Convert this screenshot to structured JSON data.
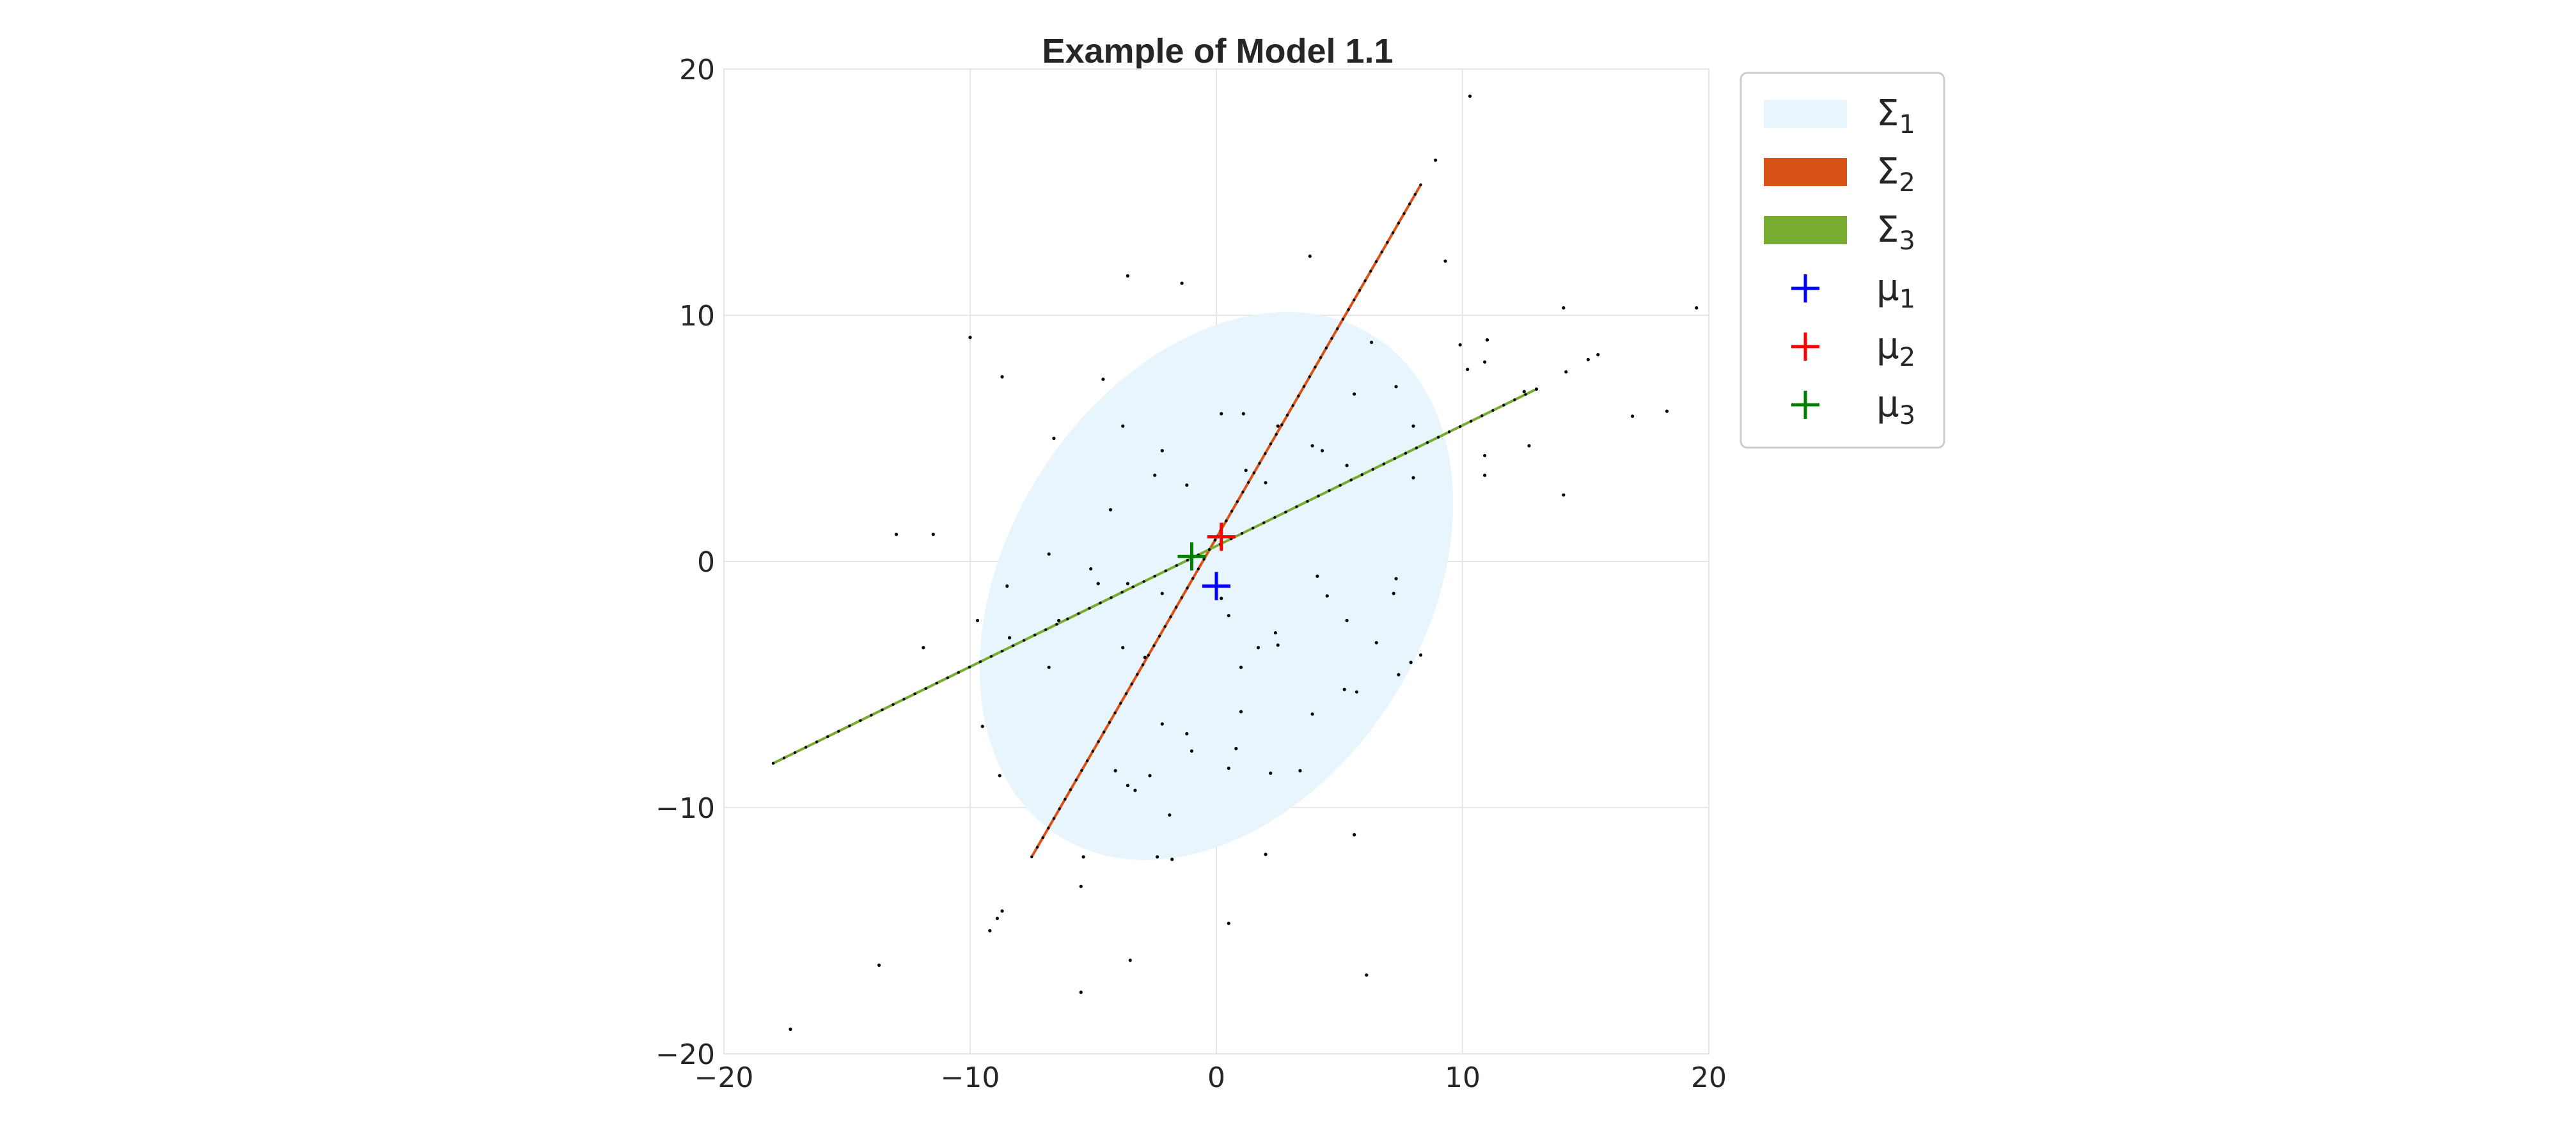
{
  "chart_data": {
    "type": "scatter",
    "title": "Example of Model 1.1",
    "xlabel": "",
    "ylabel": "",
    "xlim": [
      -20,
      20
    ],
    "ylim": [
      -20,
      20
    ],
    "x_ticks": [
      -20,
      -10,
      0,
      10,
      20
    ],
    "y_ticks": [
      -20,
      -10,
      0,
      10,
      20
    ],
    "x_tick_labels": [
      "−20",
      "−10",
      "0",
      "10",
      "20"
    ],
    "y_tick_labels": [
      "−20",
      "−10",
      "0",
      "10",
      "20"
    ],
    "grid": true,
    "legend_position": "outside-right",
    "colors": {
      "sigma1": "#e8f5fc",
      "sigma2": "#d95319",
      "sigma3": "#77ac30",
      "mu1": "#0000ff",
      "mu2": "#ff0000",
      "mu3": "#008000",
      "points": "#000000",
      "frame": "#cccccc"
    },
    "legend": [
      {
        "kind": "patch",
        "key": "sigma1",
        "symbol": "Σ",
        "sub": "1"
      },
      {
        "kind": "patch",
        "key": "sigma2",
        "symbol": "Σ",
        "sub": "2"
      },
      {
        "kind": "patch",
        "key": "sigma3",
        "symbol": "Σ",
        "sub": "3"
      },
      {
        "kind": "marker",
        "key": "mu1",
        "symbol": "μ",
        "sub": "1"
      },
      {
        "kind": "marker",
        "key": "mu2",
        "symbol": "μ",
        "sub": "2"
      },
      {
        "kind": "marker",
        "key": "mu3",
        "symbol": "μ",
        "sub": "3"
      }
    ],
    "means": [
      {
        "name": "mu1",
        "x": 0,
        "y": -1
      },
      {
        "name": "mu2",
        "x": 0.2,
        "y": 1
      },
      {
        "name": "mu3",
        "x": -1,
        "y": 0.2
      }
    ],
    "covariance_ellipse": {
      "name": "sigma1",
      "center": [
        0,
        -1
      ],
      "semi_axes": [
        12,
        8.5
      ],
      "angle_deg": 58
    },
    "degenerate_lines": [
      {
        "name": "sigma2",
        "from": [
          -7.5,
          -12
        ],
        "to": [
          8.3,
          15.3
        ]
      },
      {
        "name": "sigma3",
        "from": [
          -18,
          -8.2
        ],
        "to": [
          13,
          7
        ]
      }
    ],
    "scatter_points": [
      [
        10.3,
        18.9
      ],
      [
        8.9,
        16.3
      ],
      [
        3.8,
        12.4
      ],
      [
        -3.6,
        11.6
      ],
      [
        -1.4,
        11.3
      ],
      [
        9.3,
        12.2
      ],
      [
        -10,
        9.1
      ],
      [
        -8.7,
        7.5
      ],
      [
        -4.6,
        7.4
      ],
      [
        14.1,
        10.3
      ],
      [
        19.5,
        10.3
      ],
      [
        15.5,
        8.4
      ],
      [
        11,
        9
      ],
      [
        9.9,
        8.8
      ],
      [
        10.9,
        8.1
      ],
      [
        15.1,
        8.2
      ],
      [
        14.2,
        7.7
      ],
      [
        10.2,
        7.8
      ],
      [
        12.5,
        6.9
      ],
      [
        13,
        7
      ],
      [
        16.9,
        5.9
      ],
      [
        18.3,
        6.1
      ],
      [
        12.7,
        4.7
      ],
      [
        10.9,
        4.3
      ],
      [
        10.9,
        3.5
      ],
      [
        14.1,
        2.7
      ],
      [
        -6.6,
        5
      ],
      [
        -3.8,
        5.5
      ],
      [
        -2.2,
        4.5
      ],
      [
        0.2,
        6
      ],
      [
        1.1,
        6
      ],
      [
        2.5,
        5.5
      ],
      [
        3.9,
        4.7
      ],
      [
        4.3,
        4.5
      ],
      [
        5.6,
        6.8
      ],
      [
        6.3,
        8.9
      ],
      [
        7.3,
        7.1
      ],
      [
        8,
        5.5
      ],
      [
        -4.3,
        2.1
      ],
      [
        -2.5,
        3.5
      ],
      [
        -1.2,
        3.1
      ],
      [
        1.2,
        3.7
      ],
      [
        2,
        3.2
      ],
      [
        5.3,
        3.9
      ],
      [
        8,
        3.4
      ],
      [
        -13,
        1.1
      ],
      [
        -11.5,
        1.1
      ],
      [
        -6.8,
        0.3
      ],
      [
        -5.1,
        -0.3
      ],
      [
        -4.8,
        -0.9
      ],
      [
        -3.6,
        -0.9
      ],
      [
        -2.2,
        -1.3
      ],
      [
        -8.5,
        -1
      ],
      [
        -9.7,
        -2.4
      ],
      [
        -8.4,
        -3.1
      ],
      [
        -11.9,
        -3.5
      ],
      [
        -6.8,
        -4.3
      ],
      [
        -6.4,
        -2.4
      ],
      [
        -3.8,
        -3.5
      ],
      [
        -2.9,
        -3.9
      ],
      [
        0.2,
        -1.5
      ],
      [
        0.5,
        -2.2
      ],
      [
        1,
        -4.3
      ],
      [
        1.7,
        -3.5
      ],
      [
        2.4,
        -2.9
      ],
      [
        2.5,
        -3.4
      ],
      [
        4.1,
        -0.6
      ],
      [
        4.5,
        -1.4
      ],
      [
        5.3,
        -2.4
      ],
      [
        7.3,
        -0.7
      ],
      [
        7.2,
        -1.3
      ],
      [
        6.5,
        -3.3
      ],
      [
        8.3,
        -3.8
      ],
      [
        7.9,
        -4.1
      ],
      [
        7.4,
        -4.6
      ],
      [
        5.2,
        -5.2
      ],
      [
        5.7,
        -5.3
      ],
      [
        3.9,
        -6.2
      ],
      [
        1,
        -6.1
      ],
      [
        -1,
        -7.7
      ],
      [
        -2.7,
        -8.7
      ],
      [
        -3.6,
        -9.1
      ],
      [
        -3.3,
        -9.3
      ],
      [
        -4.1,
        -8.5
      ],
      [
        -2.2,
        -6.6
      ],
      [
        -1.2,
        -7
      ],
      [
        -9.5,
        -6.7
      ],
      [
        -8.8,
        -8.7
      ],
      [
        0.8,
        -7.6
      ],
      [
        0.5,
        -8.4
      ],
      [
        2.2,
        -8.6
      ],
      [
        3.4,
        -8.5
      ],
      [
        -1.9,
        -10.3
      ],
      [
        -2.4,
        -12
      ],
      [
        -1.8,
        -12.1
      ],
      [
        2,
        -11.9
      ],
      [
        5.6,
        -11.1
      ],
      [
        -5.4,
        -12
      ],
      [
        -5.5,
        -13.2
      ],
      [
        -8.7,
        -14.2
      ],
      [
        -8.9,
        -14.5
      ],
      [
        -9.2,
        -15
      ],
      [
        0.5,
        -14.7
      ],
      [
        -3.5,
        -16.2
      ],
      [
        -13.7,
        -16.4
      ],
      [
        6.1,
        -16.8
      ],
      [
        -5.5,
        -17.5
      ],
      [
        -17.3,
        -19
      ]
    ]
  }
}
